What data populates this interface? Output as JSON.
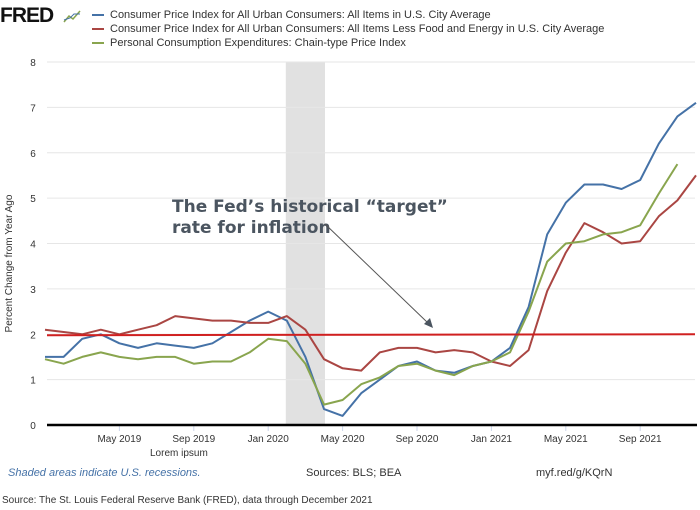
{
  "logo": "FRED",
  "legend": [
    {
      "label": "Consumer Price Index for All Urban Consumers: All Items in U.S. City Average",
      "color": "#4572a7"
    },
    {
      "label": "Consumer Price Index for All Urban Consumers: All Items Less Food and Energy in U.S. City Average",
      "color": "#aa4643"
    },
    {
      "label": "Personal Consumption Expenditures: Chain-type Price Index",
      "color": "#89a54e"
    }
  ],
  "chart_data": {
    "type": "line",
    "ylabel": "Percent Change from Year Ago",
    "ylim": [
      0,
      8
    ],
    "yticks": [
      "0",
      "1",
      "2",
      "3",
      "4",
      "5",
      "6",
      "7",
      "8"
    ],
    "xtick_labels": [
      "May 2019",
      "Sep 2019",
      "Jan 2020",
      "May 2020",
      "Sep 2020",
      "Jan 2021",
      "May 2021",
      "Sep 2021"
    ],
    "x_range": [
      "2019-01",
      "2021-12"
    ],
    "grid": true,
    "recession": [
      "2020-02",
      "2020-04"
    ],
    "series": [
      {
        "name": "Consumer Price Index for All Urban Consumers: All Items in U.S. City Average",
        "start": "2019-01",
        "color": "#4572a7",
        "values": [
          1.5,
          1.5,
          1.9,
          2.0,
          1.8,
          1.7,
          1.8,
          1.75,
          1.7,
          1.8,
          2.05,
          2.3,
          2.5,
          2.3,
          1.5,
          0.35,
          0.2,
          0.7,
          1.0,
          1.3,
          1.4,
          1.2,
          1.15,
          1.3,
          1.4,
          1.7,
          2.6,
          4.2,
          4.9,
          5.3,
          5.3,
          5.2,
          5.4,
          6.2,
          6.8,
          7.1
        ]
      },
      {
        "name": "Consumer Price Index for All Urban Consumers: All Items Less Food and Energy in U.S. City Average",
        "start": "2019-01",
        "color": "#aa4643",
        "values": [
          2.1,
          2.05,
          2.0,
          2.1,
          2.0,
          2.1,
          2.2,
          2.4,
          2.35,
          2.3,
          2.3,
          2.25,
          2.25,
          2.4,
          2.1,
          1.45,
          1.25,
          1.2,
          1.6,
          1.7,
          1.7,
          1.6,
          1.65,
          1.6,
          1.4,
          1.3,
          1.65,
          2.95,
          3.8,
          4.45,
          4.25,
          4.0,
          4.05,
          4.6,
          4.95,
          5.5
        ]
      },
      {
        "name": "Personal Consumption Expenditures: Chain-type Price Index",
        "start": "2019-01",
        "color": "#89a54e",
        "values": [
          1.45,
          1.35,
          1.5,
          1.6,
          1.5,
          1.45,
          1.5,
          1.5,
          1.35,
          1.4,
          1.4,
          1.6,
          1.9,
          1.85,
          1.35,
          0.45,
          0.55,
          0.9,
          1.05,
          1.3,
          1.35,
          1.2,
          1.1,
          1.3,
          1.4,
          1.6,
          2.5,
          3.6,
          4.0,
          4.05,
          4.2,
          4.25,
          4.4,
          5.1,
          5.75
        ]
      }
    ],
    "target_line": {
      "value": 2,
      "color": "#d02020"
    },
    "annotation": {
      "line1": "The Fed’s historical “target”",
      "line2": "rate for inflation"
    },
    "overlay_text": "Lorem ipsum"
  },
  "footer": {
    "recessions": "Shaded areas indicate U.S. recessions.",
    "sources": "Sources: BLS; BEA",
    "link": "myf.red/g/KQrN",
    "source_note": "Source: The St. Louis Federal Reserve Bank (FRED), data through December 2021"
  }
}
